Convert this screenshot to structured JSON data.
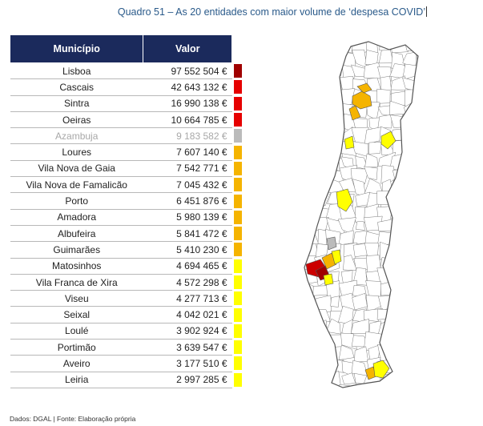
{
  "title": "Quadro 51 – As 20 entidades com maior volume de ‘despesa COVID’",
  "table": {
    "headers": [
      "Município",
      "Valor"
    ],
    "rows": [
      {
        "municipio": "Lisboa",
        "valor": "97 552 504 €",
        "color": "#a00000"
      },
      {
        "municipio": "Cascais",
        "valor": "42 643 132 €",
        "color": "#e60000"
      },
      {
        "municipio": "Sintra",
        "valor": "16 990 138 €",
        "color": "#e60000"
      },
      {
        "municipio": "Oeiras",
        "valor": "10 664 785 €",
        "color": "#e60000"
      },
      {
        "municipio": "Azambuja",
        "valor": "9 183 582 €",
        "color": "#bbbbbb"
      },
      {
        "municipio": "Loures",
        "valor": "7 607 140 €",
        "color": "#f5b400"
      },
      {
        "municipio": "Vila Nova de Gaia",
        "valor": "7 542 771 €",
        "color": "#f5b400"
      },
      {
        "municipio": "Vila Nova de Famalicão",
        "valor": "7 045 432 €",
        "color": "#f5b400"
      },
      {
        "municipio": "Porto",
        "valor": "6 451 876 €",
        "color": "#f5b400"
      },
      {
        "municipio": "Amadora",
        "valor": "5 980 139 €",
        "color": "#f5b400"
      },
      {
        "municipio": "Albufeira",
        "valor": "5 841 472 €",
        "color": "#f5b400"
      },
      {
        "municipio": "Guimarães",
        "valor": "5 410 230 €",
        "color": "#f5b400"
      },
      {
        "municipio": "Matosinhos",
        "valor": "4 694 465 €",
        "color": "#ffff00"
      },
      {
        "municipio": "Vila Franca de Xira",
        "valor": "4 572 298 €",
        "color": "#ffff00"
      },
      {
        "municipio": "Viseu",
        "valor": "4 277 713 €",
        "color": "#ffff00"
      },
      {
        "municipio": "Seixal",
        "valor": "4 042 021 €",
        "color": "#ffff00"
      },
      {
        "municipio": "Loulé",
        "valor": "3 902 924 €",
        "color": "#ffff00"
      },
      {
        "municipio": "Portimão",
        "valor": "3 639 547 €",
        "color": "#ffff00"
      },
      {
        "municipio": "Aveiro",
        "valor": "3 177 510 €",
        "color": "#ffff00"
      },
      {
        "municipio": "Leiria",
        "valor": "2 997 285 €",
        "color": "#ffff00"
      }
    ]
  },
  "source": "Dados: DGAL | Fonte: Elaboração própria",
  "map": {
    "outline_color": "#666666",
    "fill_color": "#ffffff"
  }
}
